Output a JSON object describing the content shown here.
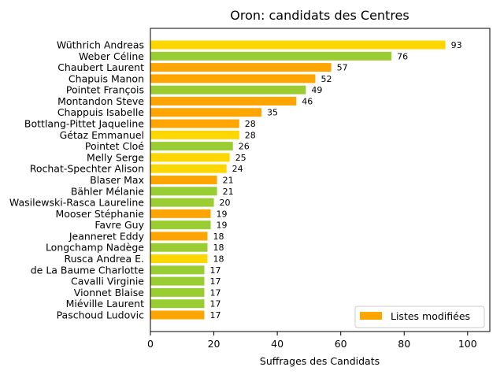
{
  "chart_data": {
    "type": "bar",
    "orientation": "horizontal",
    "title": "Oron: candidats des Centres",
    "xlabel": "Suffrages des Candidats",
    "ylabel": "",
    "xlim": [
      0,
      107
    ],
    "xticks": [
      0,
      20,
      40,
      60,
      80,
      100
    ],
    "grid": false,
    "legend": {
      "position": "lower-right",
      "entries": [
        {
          "label": "Listes modifiées",
          "color": "#FFA500"
        }
      ]
    },
    "colors": {
      "gold": "#FFD700",
      "green": "#9ACD32",
      "orange": "#FFA500"
    },
    "bars": [
      {
        "name": "Wüthrich Andreas",
        "value": 93,
        "color": "#FFD700"
      },
      {
        "name": "Weber Céline",
        "value": 76,
        "color": "#9ACD32"
      },
      {
        "name": "Chaubert Laurent",
        "value": 57,
        "color": "#FFA500"
      },
      {
        "name": "Chapuis Manon",
        "value": 52,
        "color": "#FFA500"
      },
      {
        "name": "Pointet François",
        "value": 49,
        "color": "#9ACD32"
      },
      {
        "name": "Montandon Steve",
        "value": 46,
        "color": "#FFA500"
      },
      {
        "name": "Chappuis Isabelle",
        "value": 35,
        "color": "#FFA500"
      },
      {
        "name": "Bottlang-Pittet Jaqueline",
        "value": 28,
        "color": "#FFA500"
      },
      {
        "name": "Gétaz Emmanuel",
        "value": 28,
        "color": "#FFD700"
      },
      {
        "name": "Pointet Cloé",
        "value": 26,
        "color": "#9ACD32"
      },
      {
        "name": "Melly Serge",
        "value": 25,
        "color": "#FFD700"
      },
      {
        "name": "Rochat-Spechter Alison",
        "value": 24,
        "color": "#FFD700"
      },
      {
        "name": "Blaser Max",
        "value": 21,
        "color": "#FFA500"
      },
      {
        "name": "Bähler Mélanie",
        "value": 21,
        "color": "#9ACD32"
      },
      {
        "name": "Wasilewski-Rasca Laureline",
        "value": 20,
        "color": "#9ACD32"
      },
      {
        "name": "Mooser Stéphanie",
        "value": 19,
        "color": "#FFA500"
      },
      {
        "name": "Favre Guy",
        "value": 19,
        "color": "#9ACD32"
      },
      {
        "name": "Jeanneret Eddy",
        "value": 18,
        "color": "#FFA500"
      },
      {
        "name": "Longchamp Nadège",
        "value": 18,
        "color": "#9ACD32"
      },
      {
        "name": "Rusca Andrea E.",
        "value": 18,
        "color": "#FFD700"
      },
      {
        "name": "de La Baume Charlotte",
        "value": 17,
        "color": "#9ACD32"
      },
      {
        "name": "Cavalli Virginie",
        "value": 17,
        "color": "#9ACD32"
      },
      {
        "name": "Vionnet Blaise",
        "value": 17,
        "color": "#9ACD32"
      },
      {
        "name": "Miéville Laurent",
        "value": 17,
        "color": "#9ACD32"
      },
      {
        "name": "Paschoud Ludovic",
        "value": 17,
        "color": "#FFA500"
      }
    ]
  }
}
